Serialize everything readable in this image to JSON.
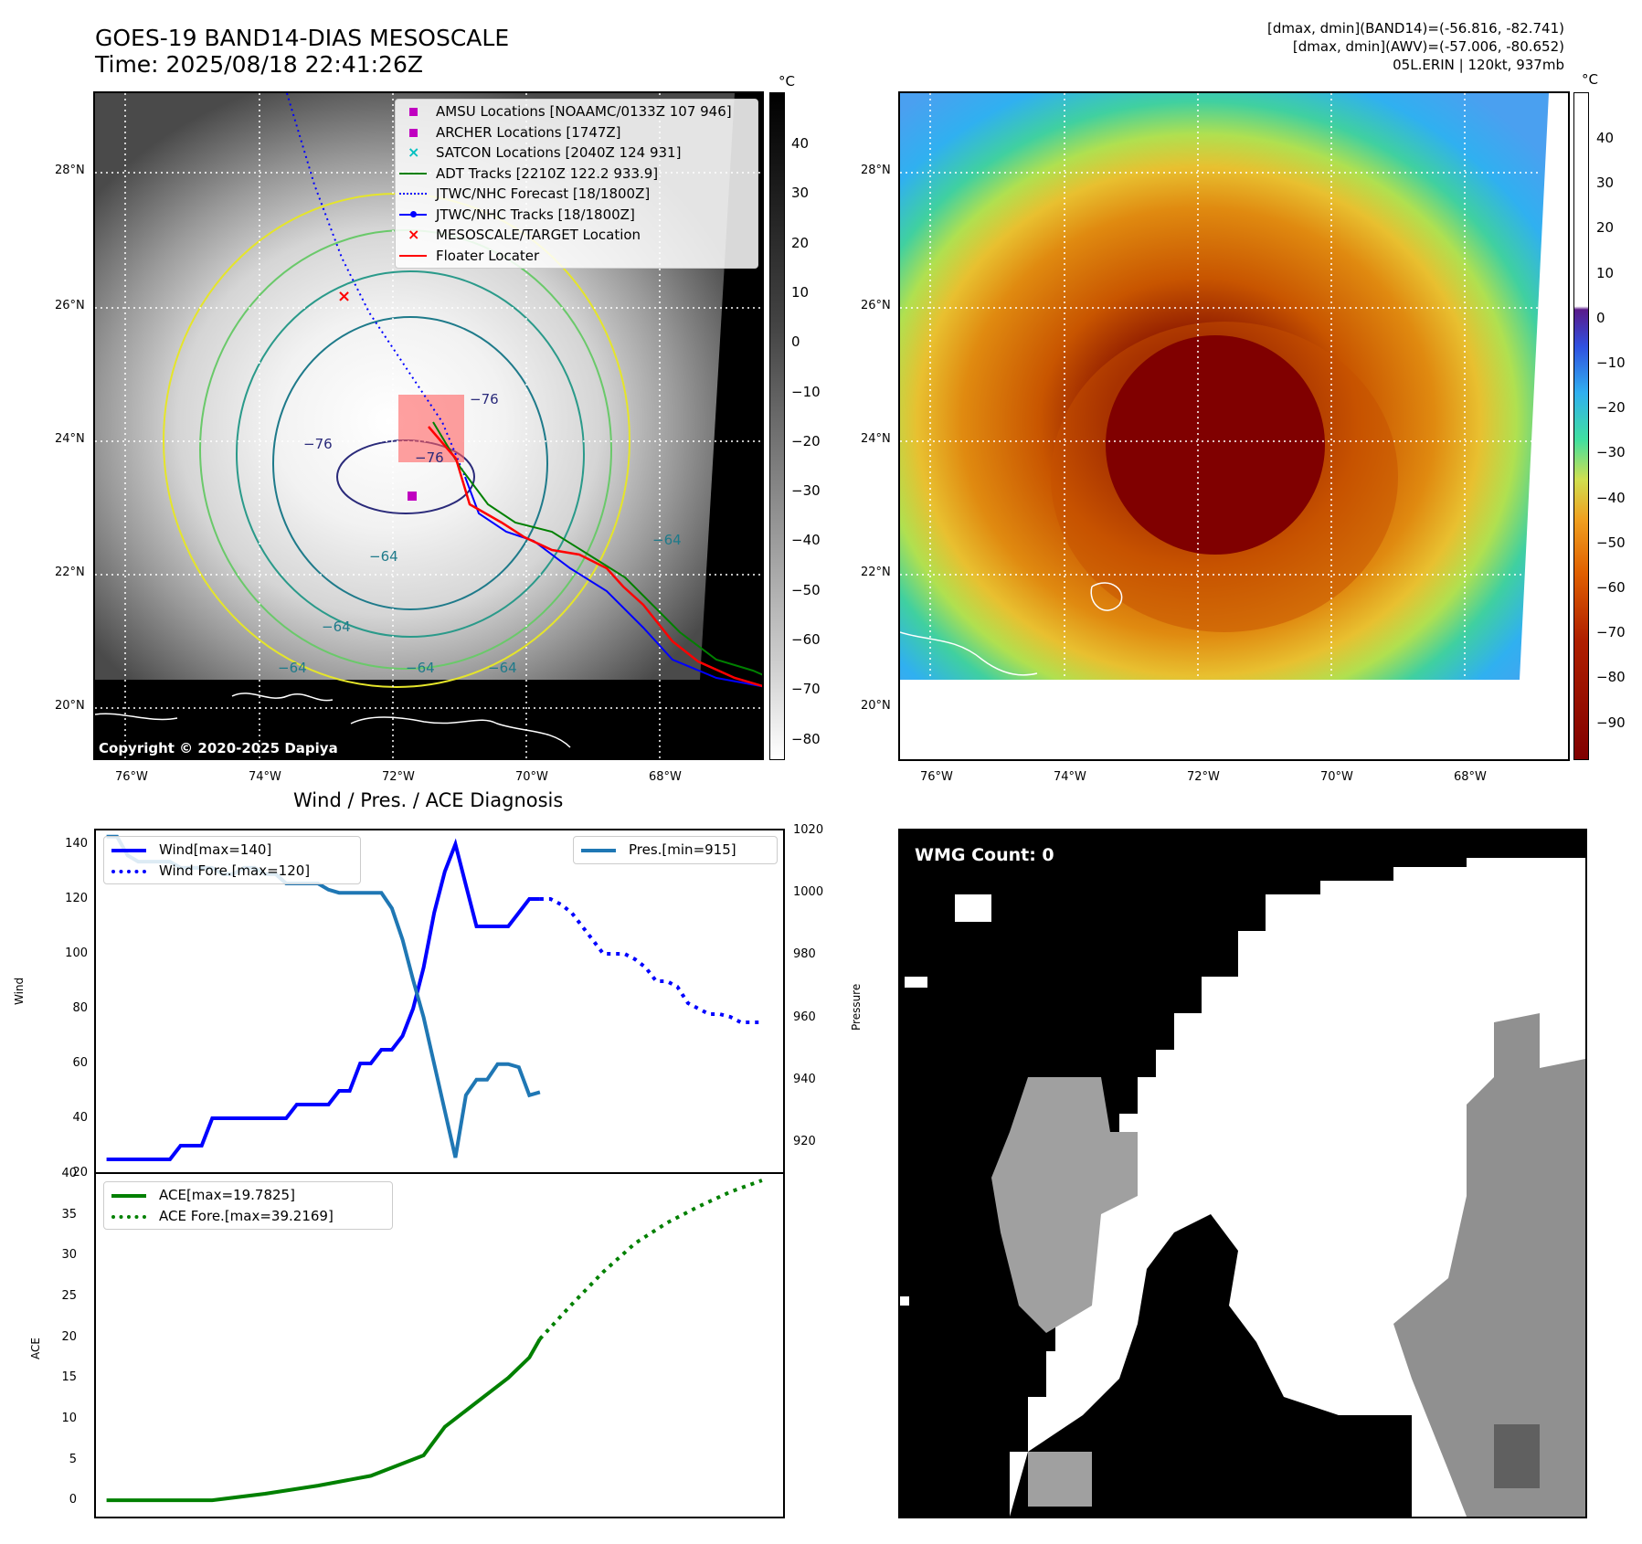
{
  "header": {
    "title_line1": "GOES-19 BAND14-DIAS MESOSCALE",
    "title_line2": "Time: 2025/08/18 22:41:26Z",
    "stats_line1": "[dmax, dmin](BAND14)=(-56.816, -82.741)",
    "stats_line2": "[dmax, dmin](AWV)=(-57.006, -80.652)",
    "stats_line3": "05L.ERIN | 120kt, 937mb"
  },
  "map_ir": {
    "lon_ticks": [
      "76°W",
      "74°W",
      "72°W",
      "70°W",
      "68°W"
    ],
    "lat_ticks": [
      "28°N",
      "26°N",
      "24°N",
      "22°N",
      "20°N"
    ],
    "copyright": "Copyright © 2020-2025 Dapiya",
    "contour_labels": [
      "−76",
      "−76",
      "−76",
      "−64",
      "−64",
      "−64",
      "−64",
      "−64",
      "−64"
    ],
    "legend": [
      {
        "label": "AMSU Locations [NOAAMC/0133Z 107 946]",
        "marker": "square",
        "color": "#c000c0"
      },
      {
        "label": "ARCHER Locations [1747Z]",
        "marker": "square",
        "color": "#c000c0"
      },
      {
        "label": "SATCON Locations [2040Z 124 931]",
        "marker": "x",
        "color": "#00c0c0"
      },
      {
        "label": "ADT Tracks [2210Z 122.2 933.9]",
        "marker": "line",
        "color": "#008000"
      },
      {
        "label": "JTWC/NHC Forecast [18/1800Z]",
        "marker": "dotted",
        "color": "#0000ff"
      },
      {
        "label": "JTWC/NHC Tracks [18/1800Z]",
        "marker": "line-dot",
        "color": "#0000ff"
      },
      {
        "label": "MESOSCALE/TARGET Location",
        "marker": "x",
        "color": "#ff0000"
      },
      {
        "label": "Floater Locater",
        "marker": "line",
        "color": "#ff0000"
      }
    ],
    "colorbar": {
      "unit": "°C",
      "ticks": [
        "40",
        "30",
        "20",
        "10",
        "0",
        "−10",
        "−20",
        "−30",
        "−40",
        "−50",
        "−60",
        "−70",
        "−80"
      ]
    }
  },
  "map_color": {
    "lon_ticks": [
      "76°W",
      "74°W",
      "72°W",
      "70°W",
      "68°W"
    ],
    "lat_ticks": [
      "28°N",
      "26°N",
      "24°N",
      "22°N",
      "20°N"
    ],
    "colorbar": {
      "unit": "°C",
      "ticks": [
        "40",
        "30",
        "20",
        "10",
        "0",
        "−10",
        "−20",
        "−30",
        "−40",
        "−50",
        "−60",
        "−70",
        "−80",
        "−90"
      ]
    }
  },
  "wmg": {
    "label": "WMG Count: 0"
  },
  "chart_data": [
    {
      "type": "line",
      "title": "Wind / Pres. / ACE Diagnosis",
      "ylabel": "Wind",
      "ylabel_right": "Pressure",
      "ylim": [
        20,
        145
      ],
      "ylim_right": [
        910,
        1020
      ],
      "yticks": [
        "140",
        "120",
        "100",
        "80",
        "60",
        "40",
        "20"
      ],
      "yticks_right": [
        "1020",
        "1000",
        "980",
        "960",
        "940",
        "920"
      ],
      "legend_left": [
        "Wind[max=140]",
        "Wind Fore.[max=120]"
      ],
      "legend_right": [
        "Pres.[min=915]"
      ],
      "series": [
        {
          "name": "Wind[max=140]",
          "color": "#0000ff",
          "style": "solid",
          "x": [
            0,
            1,
            2,
            3,
            4,
            5,
            6,
            7,
            8,
            9,
            10,
            11,
            12,
            13,
            14,
            15,
            16,
            17,
            18,
            19,
            20,
            21,
            22,
            23,
            24,
            25,
            26,
            27,
            28,
            29,
            30,
            31,
            32,
            33,
            34,
            35,
            36,
            37,
            38,
            39,
            40,
            41
          ],
          "y": [
            25,
            25,
            25,
            25,
            25,
            25,
            25,
            30,
            30,
            30,
            40,
            40,
            40,
            40,
            40,
            40,
            40,
            40,
            45,
            45,
            45,
            45,
            50,
            50,
            60,
            60,
            65,
            65,
            70,
            80,
            95,
            115,
            130,
            140,
            125,
            110,
            110,
            110,
            110,
            115,
            120,
            120
          ]
        },
        {
          "name": "Wind Fore.[max=120]",
          "color": "#0000ff",
          "style": "dotted",
          "x": [
            41,
            42,
            43,
            44,
            45,
            46,
            47,
            48,
            49,
            50,
            51,
            52,
            53,
            54,
            55,
            56,
            57,
            58,
            59,
            60,
            61,
            62
          ],
          "y": [
            120,
            120,
            118,
            115,
            110,
            105,
            100,
            100,
            100,
            98,
            95,
            90,
            90,
            88,
            82,
            80,
            78,
            78,
            77,
            75,
            75,
            75
          ]
        },
        {
          "name": "Pres.[min=915]",
          "color": "#1f77b4",
          "style": "solid",
          "axis": "right",
          "x": [
            0,
            1,
            2,
            3,
            4,
            5,
            6,
            7,
            8,
            9,
            10,
            11,
            12,
            13,
            14,
            15,
            16,
            17,
            18,
            19,
            20,
            21,
            22,
            23,
            24,
            25,
            26,
            27,
            28,
            29,
            30,
            31,
            32,
            33,
            34,
            35,
            36,
            37,
            38,
            39,
            40,
            41
          ],
          "y": [
            1018,
            1018,
            1012,
            1010,
            1010,
            1010,
            1010,
            1008,
            1008,
            1008,
            1008,
            1006,
            1006,
            1008,
            1008,
            1006,
            1006,
            1003,
            1003,
            1003,
            1003,
            1001,
            1000,
            1000,
            1000,
            1000,
            1000,
            995,
            985,
            972,
            960,
            945,
            930,
            915,
            935,
            940,
            940,
            945,
            945,
            944,
            935,
            936
          ]
        }
      ]
    },
    {
      "type": "line",
      "ylabel": "ACE",
      "ylim": [
        -2,
        40
      ],
      "yticks": [
        "40",
        "35",
        "30",
        "25",
        "20",
        "15",
        "10",
        "5",
        "0"
      ],
      "legend": [
        "ACE[max=19.7825]",
        "ACE Fore.[max=39.2169]"
      ],
      "series": [
        {
          "name": "ACE[max=19.7825]",
          "color": "#008000",
          "style": "solid",
          "x": [
            0,
            5,
            10,
            15,
            20,
            25,
            30,
            32,
            35,
            38,
            40,
            41
          ],
          "y": [
            0,
            0,
            0,
            0.8,
            1.8,
            3,
            5.5,
            9,
            12,
            15,
            17.5,
            19.78
          ]
        },
        {
          "name": "ACE Fore.[max=39.2169]",
          "color": "#008000",
          "style": "dotted",
          "x": [
            41,
            44,
            47,
            50,
            53,
            56,
            59,
            62
          ],
          "y": [
            19.78,
            24,
            28,
            31.5,
            34,
            36,
            37.8,
            39.22
          ]
        }
      ]
    }
  ]
}
